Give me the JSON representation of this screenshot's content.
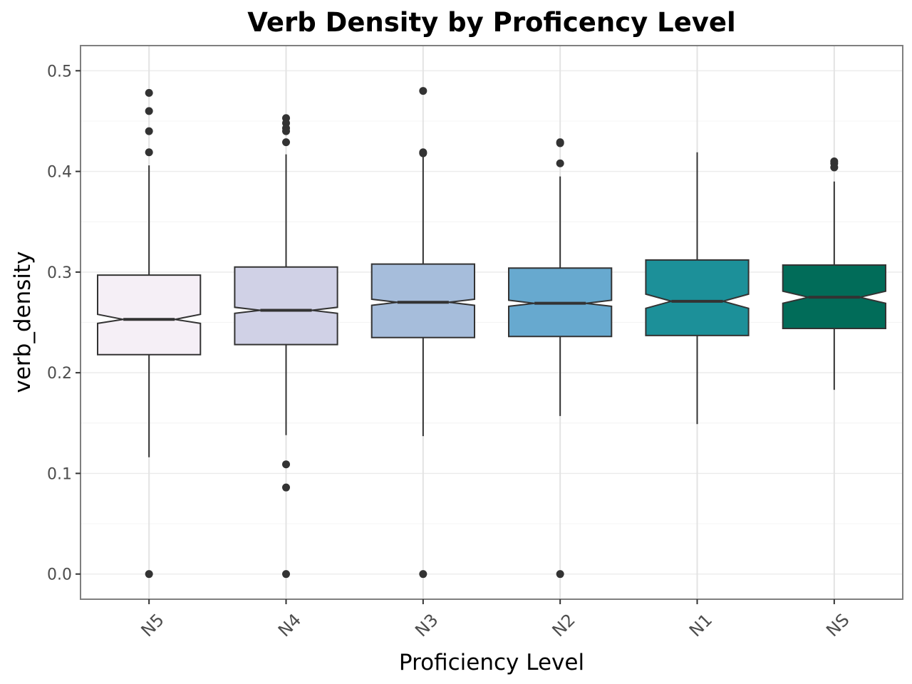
{
  "chart_data": {
    "type": "boxplot",
    "title": "Verb Density by Proficency Level",
    "xlabel": "Proficiency Level",
    "ylabel": "verb_density",
    "ylim": [
      -0.025,
      0.525
    ],
    "yticks": [
      0.0,
      0.1,
      0.2,
      0.3,
      0.4,
      0.5
    ],
    "ytick_labels": [
      "0.0",
      "0.1",
      "0.2",
      "0.3",
      "0.4",
      "0.5"
    ],
    "grid": true,
    "notched": true,
    "categories": [
      "N5",
      "N4",
      "N3",
      "N2",
      "N1",
      "NS"
    ],
    "series": [
      {
        "category": "N5",
        "color": "#f5eff6",
        "q1": 0.218,
        "median": 0.253,
        "q3": 0.297,
        "notch_low": 0.249,
        "notch_high": 0.258,
        "whisker_low": 0.116,
        "whisker_high": 0.406,
        "outliers": [
          0.478,
          0.46,
          0.44,
          0.419,
          0.0
        ]
      },
      {
        "category": "N4",
        "color": "#d0d1e6",
        "q1": 0.228,
        "median": 0.262,
        "q3": 0.305,
        "notch_low": 0.259,
        "notch_high": 0.265,
        "whisker_low": 0.138,
        "whisker_high": 0.417,
        "outliers": [
          0.453,
          0.448,
          0.443,
          0.44,
          0.429,
          0.109,
          0.086,
          0.0
        ]
      },
      {
        "category": "N3",
        "color": "#a6bddb",
        "q1": 0.235,
        "median": 0.27,
        "q3": 0.308,
        "notch_low": 0.267,
        "notch_high": 0.273,
        "whisker_low": 0.137,
        "whisker_high": 0.416,
        "outliers": [
          0.48,
          0.419,
          0.418,
          0.0
        ]
      },
      {
        "category": "N2",
        "color": "#67a9cf",
        "q1": 0.236,
        "median": 0.269,
        "q3": 0.304,
        "notch_low": 0.266,
        "notch_high": 0.272,
        "whisker_low": 0.157,
        "whisker_high": 0.395,
        "outliers": [
          0.429,
          0.428,
          0.408,
          0.0
        ]
      },
      {
        "category": "N1",
        "color": "#1c9099",
        "q1": 0.237,
        "median": 0.271,
        "q3": 0.312,
        "notch_low": 0.264,
        "notch_high": 0.278,
        "whisker_low": 0.149,
        "whisker_high": 0.419,
        "outliers": []
      },
      {
        "category": "NS",
        "color": "#016c59",
        "q1": 0.244,
        "median": 0.275,
        "q3": 0.307,
        "notch_low": 0.269,
        "notch_high": 0.281,
        "whisker_low": 0.183,
        "whisker_high": 0.39,
        "outliers": [
          0.41,
          0.408,
          0.404
        ]
      }
    ]
  }
}
